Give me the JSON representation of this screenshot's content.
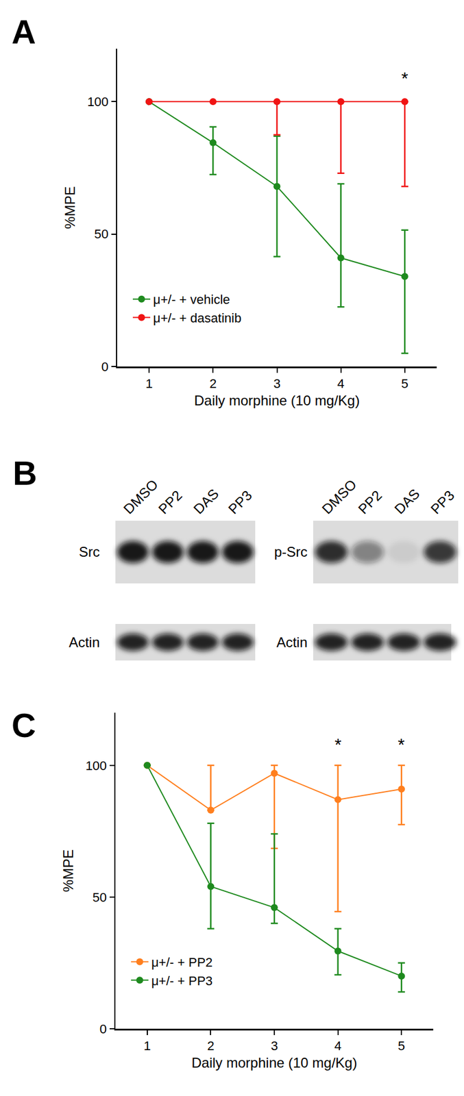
{
  "chart_data": [
    {
      "type": "line",
      "title": "A",
      "x_label": "Daily morphine (10 mg/Kg)",
      "y_label": "%MPE",
      "x": [
        1,
        2,
        3,
        4,
        5
      ],
      "xlim": [
        0.5,
        5.5
      ],
      "xticks": [
        1,
        2,
        3,
        4,
        5
      ],
      "ylim": [
        0,
        120
      ],
      "yticks": [
        0,
        50,
        100
      ],
      "grid": false,
      "legend": "lower left",
      "marker": "circle",
      "series": [
        {
          "name": "μ+/- + vehicle",
          "color": "#1e8a1e",
          "values": [
            100,
            84.5,
            68,
            41,
            34
          ],
          "error_plus": [
            null,
            6,
            19,
            28,
            17.5
          ],
          "error_minus": [
            null,
            12,
            26.5,
            18.5,
            29
          ]
        },
        {
          "name": "μ+/- + dasatinib",
          "color": "#f01414",
          "values": [
            100,
            100,
            100,
            100,
            100
          ],
          "error_plus": [
            null,
            null,
            0,
            0,
            0
          ],
          "error_minus": [
            null,
            null,
            12.5,
            27,
            32
          ]
        }
      ],
      "annotations": [
        {
          "x": 5,
          "y": 109,
          "text": "*"
        }
      ]
    },
    {
      "type": "line",
      "title": "C",
      "x_label": "Daily morphine (10 mg/Kg)",
      "y_label": "%MPE",
      "x": [
        1,
        2,
        3,
        4,
        5
      ],
      "xlim": [
        0.5,
        5.5
      ],
      "xticks": [
        1,
        2,
        3,
        4,
        5
      ],
      "ylim": [
        0,
        120
      ],
      "yticks": [
        0,
        50,
        100
      ],
      "grid": false,
      "legend": "lower left",
      "marker": "circle",
      "series": [
        {
          "name": "μ+/- + PP2",
          "color": "#ff7f1e",
          "values": [
            100,
            83,
            97,
            87,
            91
          ],
          "error_plus": [
            null,
            17,
            3,
            13,
            9
          ],
          "error_minus": [
            null,
            0,
            28.5,
            42.5,
            13.5
          ]
        },
        {
          "name": "μ+/- + PP3",
          "color": "#1e8a1e",
          "values": [
            100,
            54,
            46,
            29.5,
            20
          ],
          "error_plus": [
            null,
            24,
            28,
            8.5,
            5
          ],
          "error_minus": [
            null,
            16,
            6,
            9,
            6
          ]
        }
      ],
      "annotations": [
        {
          "x": 4,
          "y": 108,
          "text": "*"
        },
        {
          "x": 5,
          "y": 108,
          "text": "*"
        }
      ]
    }
  ],
  "blot": {
    "title": "B",
    "panels": [
      {
        "lanes": [
          "DMSO",
          "PP2",
          "DAS",
          "PP3"
        ],
        "rows": [
          {
            "label": "Src",
            "intensity": [
              0.95,
              0.95,
              0.95,
              0.95
            ]
          },
          {
            "label": "Actin",
            "intensity": [
              0.9,
              0.9,
              0.9,
              0.9
            ]
          }
        ]
      },
      {
        "lanes": [
          "DMSO",
          "PP2",
          "DAS",
          "PP3"
        ],
        "rows": [
          {
            "label": "p-Src",
            "intensity": [
              0.85,
              0.45,
              0.08,
              0.8
            ]
          },
          {
            "label": "Actin",
            "intensity": [
              0.9,
              0.9,
              0.9,
              0.9
            ]
          }
        ]
      }
    ]
  }
}
